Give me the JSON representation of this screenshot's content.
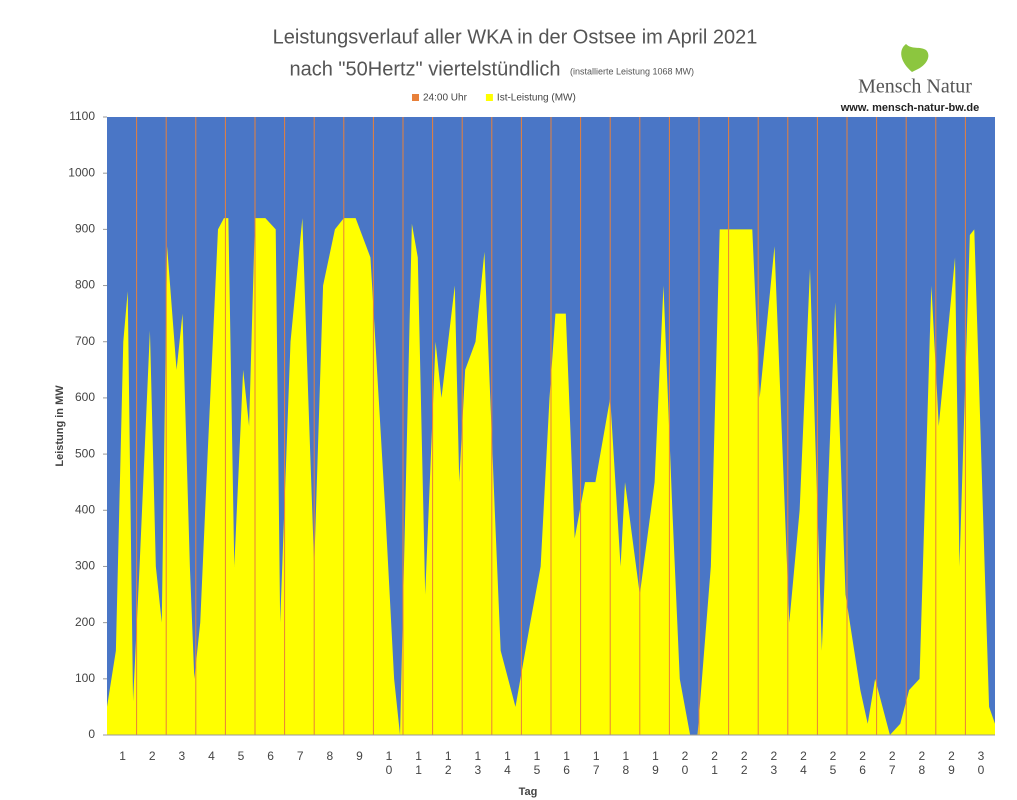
{
  "chart_data": {
    "type": "area",
    "title": "Leistungsverlauf aller WKA in der Ostsee im April 2021",
    "subtitle": "nach \"50Hertz\" viertelstündlich",
    "note": "(installierte Leistung 1068 MW)",
    "logo_text": "Mensch Natur",
    "logo_url": "www. mensch-natur-bw.de",
    "x_label": "Tag",
    "y_label": "Leistung in MW",
    "categories": [
      "1",
      "2",
      "3",
      "4",
      "5",
      "6",
      "7",
      "8",
      "9",
      "10",
      "11",
      "12",
      "13",
      "14",
      "15",
      "16",
      "17",
      "18",
      "19",
      "20",
      "21",
      "22",
      "23",
      "24",
      "25",
      "26",
      "27",
      "28",
      "29",
      "30"
    ],
    "x": [
      0,
      0.3,
      0.55,
      0.7,
      0.88,
      1.1,
      1.45,
      1.65,
      1.85,
      2.03,
      2.35,
      2.55,
      2.8,
      2.95,
      3.15,
      3.4,
      3.75,
      3.95,
      4.1,
      4.3,
      4.6,
      4.8,
      5.0,
      5.35,
      5.7,
      5.85,
      6.2,
      6.6,
      6.8,
      7.0,
      7.3,
      7.7,
      8.0,
      8.4,
      8.9,
      9.4,
      9.7,
      9.9,
      10.3,
      10.5,
      10.75,
      11.1,
      11.3,
      11.75,
      11.9,
      12.1,
      12.45,
      12.75,
      13.1,
      13.3,
      13.8,
      14.3,
      14.65,
      14.95,
      15.15,
      15.5,
      15.8,
      16.15,
      16.5,
      17.0,
      17.35,
      17.5,
      18.0,
      18.5,
      18.8,
      19.1,
      19.35,
      19.7,
      19.95,
      20.4,
      20.7,
      21.3,
      21.8,
      22.05,
      22.55,
      23.05,
      23.4,
      23.75,
      24.15,
      24.6,
      24.95,
      25.45,
      25.7,
      25.95,
      26.45,
      26.8,
      27.1,
      27.45,
      27.85,
      28.1,
      28.65,
      28.8,
      29.15,
      29.3,
      29.65,
      29.8,
      30
    ],
    "series": [
      {
        "name": "24:00 Uhr",
        "color": "#e8803a"
      },
      {
        "name": "Ist-Leistung (MW)",
        "color": "#ffff00",
        "values": [
          50,
          150,
          700,
          790,
          60,
          300,
          720,
          300,
          200,
          870,
          650,
          750,
          300,
          100,
          200,
          500,
          900,
          920,
          920,
          300,
          650,
          550,
          920,
          920,
          900,
          200,
          700,
          920,
          600,
          300,
          800,
          900,
          920,
          920,
          850,
          400,
          100,
          0,
          910,
          850,
          250,
          700,
          600,
          800,
          450,
          650,
          700,
          860,
          400,
          150,
          50,
          200,
          300,
          600,
          750,
          750,
          350,
          450,
          450,
          600,
          300,
          450,
          250,
          450,
          800,
          400,
          100,
          0,
          0,
          300,
          900,
          900,
          900,
          600,
          870,
          200,
          400,
          830,
          150,
          770,
          250,
          80,
          20,
          100,
          0,
          20,
          80,
          100,
          800,
          550,
          850,
          300,
          890,
          900,
          300,
          50,
          20
        ]
      }
    ],
    "background": "#4a76c6",
    "xlim": [
      0,
      30
    ],
    "ylim": [
      0,
      1100
    ],
    "yticks": [
      0,
      100,
      200,
      300,
      400,
      500,
      600,
      700,
      800,
      900,
      1000,
      1100
    ],
    "grid": false
  }
}
